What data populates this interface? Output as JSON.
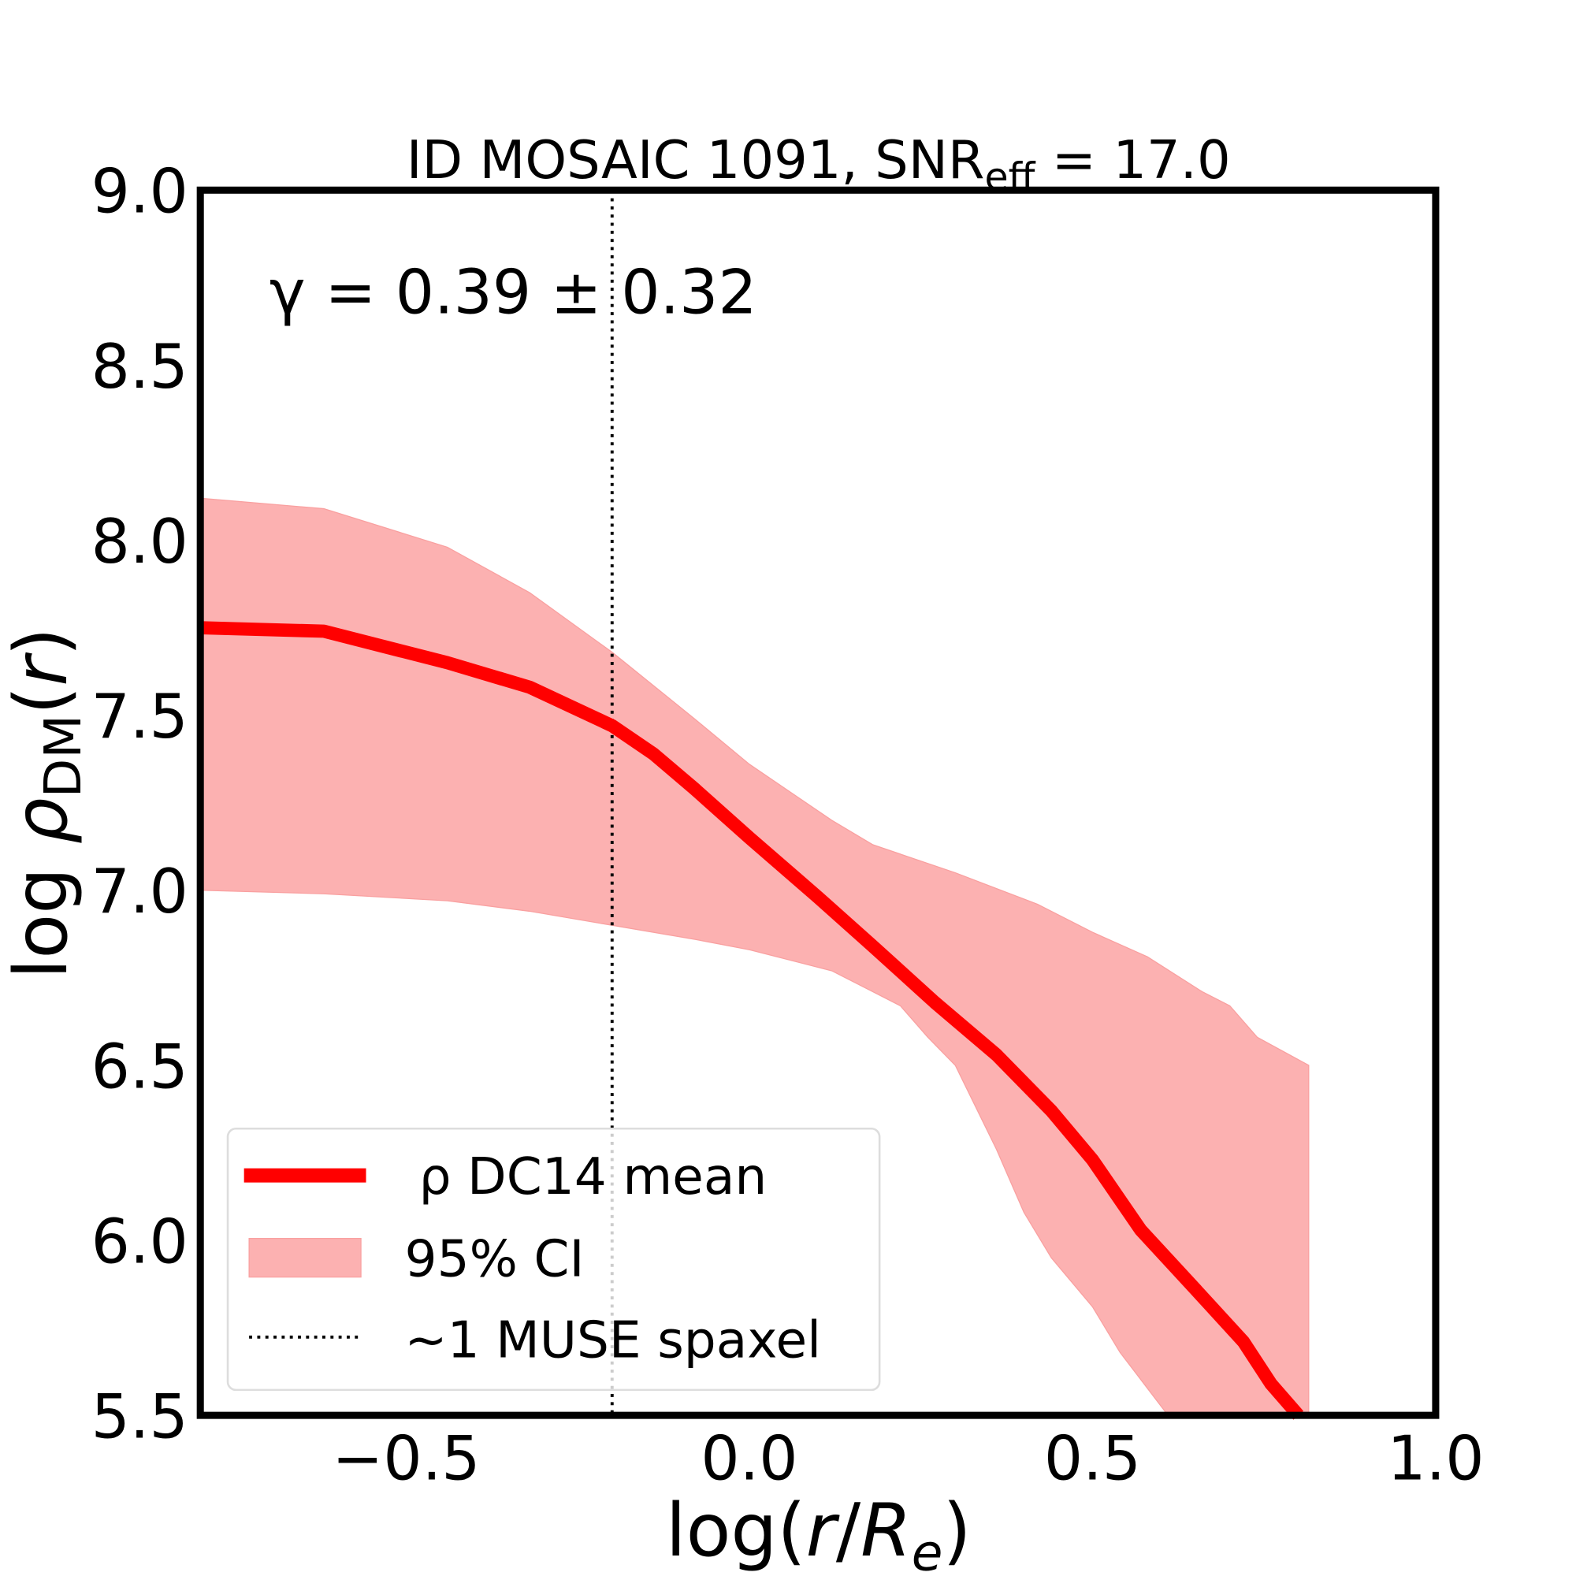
{
  "chart_data": {
    "type": "line",
    "title": "ID MOSAIC 1091, SNR",
    "title_sub": "eff",
    "title_suffix": " = 17.0",
    "xlabel": "log(r/R_e)",
    "ylabel": "log ρ_DM(r)",
    "xlim": [
      -0.8,
      1.0
    ],
    "ylim": [
      5.5,
      9.0
    ],
    "xticks": [
      -0.5,
      0.0,
      0.5,
      1.0
    ],
    "xtick_labels": [
      "−0.5",
      "0.0",
      "0.5",
      "1.0"
    ],
    "yticks": [
      5.5,
      6.0,
      6.5,
      7.0,
      7.5,
      8.0,
      8.5,
      9.0
    ],
    "ytick_labels": [
      "5.5",
      "6.0",
      "6.5",
      "7.0",
      "7.5",
      "8.0",
      "8.5",
      "9.0"
    ],
    "grid": false,
    "annotation": "γ = 0.39 ± 0.32",
    "vline": {
      "x": -0.2,
      "name": "~1 MUSE spaxel"
    },
    "series": [
      {
        "name": "ρ DC14 mean",
        "color": "#ff0000",
        "x": [
          -0.8,
          -0.62,
          -0.44,
          -0.32,
          -0.2,
          -0.14,
          -0.08,
          0.0,
          0.1,
          0.18,
          0.27,
          0.36,
          0.44,
          0.5,
          0.57,
          0.65,
          0.72,
          0.76,
          0.8
        ],
        "y": [
          7.75,
          7.74,
          7.65,
          7.58,
          7.47,
          7.39,
          7.29,
          7.15,
          6.98,
          6.84,
          6.68,
          6.53,
          6.37,
          6.23,
          6.03,
          5.86,
          5.71,
          5.59,
          5.5
        ]
      }
    ],
    "band": {
      "name": "95% CI",
      "color": "#fcb1b1",
      "upper": {
        "x": [
          -0.8,
          -0.62,
          -0.44,
          -0.32,
          -0.2,
          -0.08,
          0.0,
          0.12,
          0.18,
          0.3,
          0.42,
          0.5,
          0.58,
          0.66,
          0.7,
          0.74,
          0.815
        ],
        "y": [
          8.12,
          8.09,
          7.98,
          7.85,
          7.68,
          7.49,
          7.36,
          7.2,
          7.13,
          7.05,
          6.96,
          6.88,
          6.81,
          6.71,
          6.67,
          6.58,
          6.5
        ]
      },
      "lower": {
        "x": [
          -0.8,
          -0.62,
          -0.44,
          -0.32,
          -0.2,
          -0.08,
          0.0,
          0.12,
          0.16,
          0.22,
          0.26,
          0.3,
          0.36,
          0.4,
          0.44,
          0.5,
          0.54,
          0.61
        ],
        "y": [
          7.0,
          6.99,
          6.97,
          6.94,
          6.9,
          6.86,
          6.83,
          6.77,
          6.73,
          6.67,
          6.58,
          6.5,
          6.26,
          6.08,
          5.95,
          5.81,
          5.68,
          5.5
        ]
      }
    },
    "legend": {
      "placement": "lower-left",
      "entries": [
        "ρ DC14 mean",
        "95% CI",
        "~1 MUSE spaxel"
      ]
    }
  }
}
